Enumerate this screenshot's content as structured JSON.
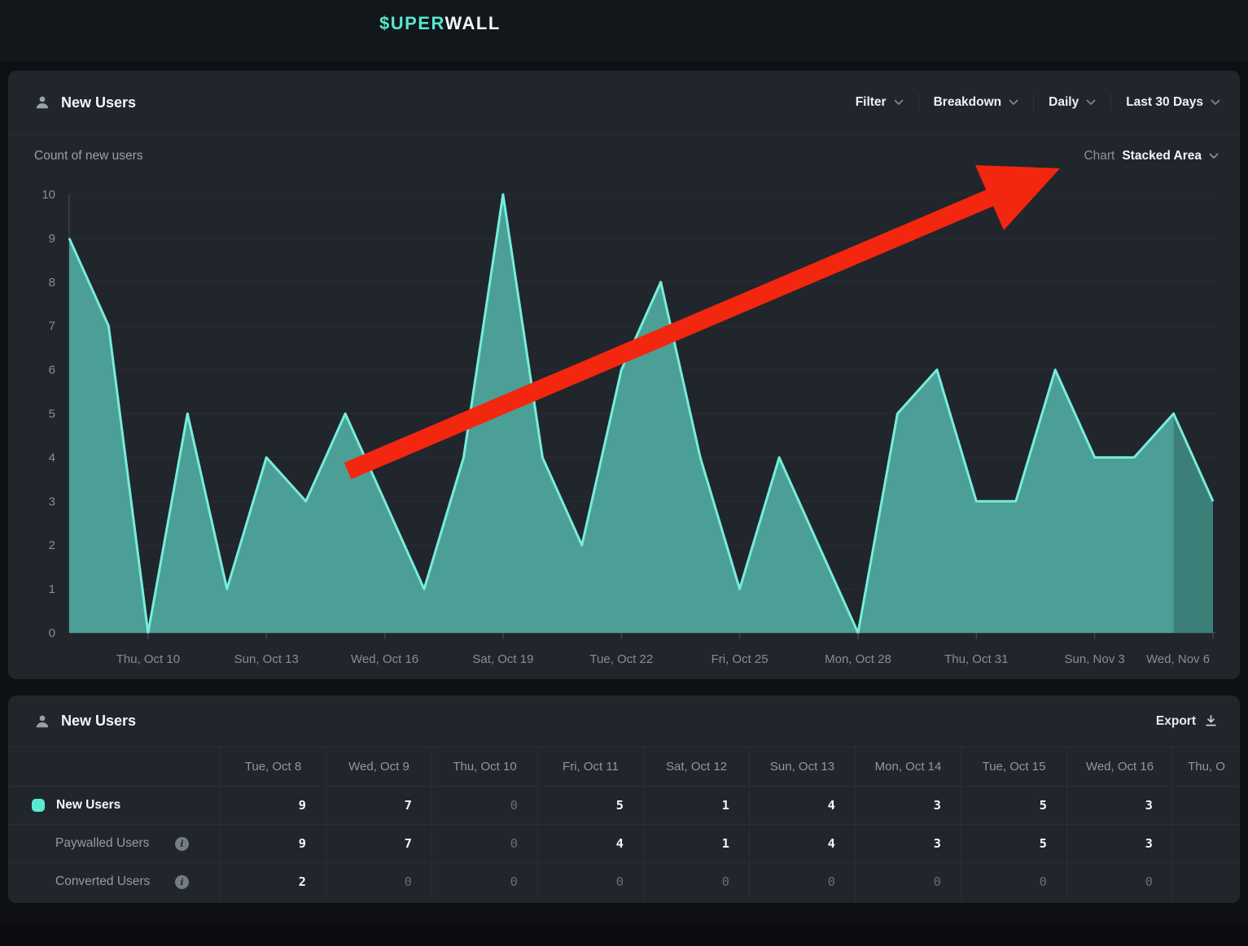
{
  "topbar": {
    "logo_prefix": "$UPER",
    "logo_suffix": "WALL"
  },
  "chart_panel": {
    "title": "New Users",
    "controls": [
      {
        "label": "Filter"
      },
      {
        "label": "Breakdown"
      },
      {
        "label": "Daily"
      },
      {
        "label": "Last 30 Days"
      }
    ],
    "subtitle": "Count of new users",
    "chart_type_label": "Chart",
    "chart_type_value": "Stacked Area"
  },
  "chart_data": {
    "type": "area",
    "title": "Count of new users",
    "x": [
      "Tue, Oct 8",
      "Wed, Oct 9",
      "Thu, Oct 10",
      "Fri, Oct 11",
      "Sat, Oct 12",
      "Sun, Oct 13",
      "Mon, Oct 14",
      "Tue, Oct 15",
      "Wed, Oct 16",
      "Thu, Oct 17",
      "Fri, Oct 18",
      "Sat, Oct 19",
      "Sun, Oct 20",
      "Mon, Oct 21",
      "Tue, Oct 22",
      "Wed, Oct 23",
      "Thu, Oct 24",
      "Fri, Oct 25",
      "Sat, Oct 26",
      "Sun, Oct 27",
      "Mon, Oct 28",
      "Tue, Oct 29",
      "Wed, Oct 30",
      "Thu, Oct 31",
      "Fri, Nov 1",
      "Sat, Nov 2",
      "Sun, Nov 3",
      "Mon, Nov 4",
      "Tue, Nov 5",
      "Wed, Nov 6"
    ],
    "values": [
      9,
      7,
      0,
      5,
      1,
      4,
      3,
      5,
      3,
      1,
      4,
      10,
      4,
      2,
      6,
      8,
      4,
      1,
      4,
      2,
      0,
      5,
      6,
      3,
      3,
      6,
      4,
      4,
      5,
      3
    ],
    "ylim": [
      0,
      10
    ],
    "y_ticks": [
      0,
      1,
      2,
      3,
      4,
      5,
      6,
      7,
      8,
      9,
      10
    ],
    "x_tick_labels": [
      "Thu, Oct 10",
      "Sun, Oct 13",
      "Wed, Oct 16",
      "Sat, Oct 19",
      "Tue, Oct 22",
      "Fri, Oct 25",
      "Mon, Oct 28",
      "Thu, Oct 31",
      "Sun, Nov 3",
      "Wed, Nov 6"
    ],
    "x_tick_indices": [
      2,
      5,
      8,
      11,
      14,
      17,
      20,
      23,
      26,
      29
    ],
    "grid": true,
    "legend_position": "none",
    "incomplete_from_index": 28,
    "colors": {
      "fill": "#4b9f96",
      "fill_dim": "#3c7f79",
      "stroke": "#76eddb"
    }
  },
  "annotation_arrow": {
    "color": "#f3260f"
  },
  "table_panel": {
    "title": "New Users",
    "export_label": "Export",
    "columns": [
      "Tue, Oct 8",
      "Wed, Oct 9",
      "Thu, Oct 10",
      "Fri, Oct 11",
      "Sat, Oct 12",
      "Sun, Oct 13",
      "Mon, Oct 14",
      "Tue, Oct 15",
      "Wed, Oct 16",
      "Thu, O"
    ],
    "swatch_color": "#57eccf",
    "rows": [
      {
        "label": "New Users",
        "swatch": true,
        "info": false,
        "values": [
          9,
          7,
          0,
          5,
          1,
          4,
          3,
          5,
          3
        ]
      },
      {
        "label": "Paywalled Users",
        "swatch": false,
        "info": true,
        "values": [
          9,
          7,
          0,
          4,
          1,
          4,
          3,
          5,
          3
        ]
      },
      {
        "label": "Converted Users",
        "swatch": false,
        "info": true,
        "values": [
          2,
          0,
          0,
          0,
          0,
          0,
          0,
          0,
          0
        ]
      }
    ]
  }
}
